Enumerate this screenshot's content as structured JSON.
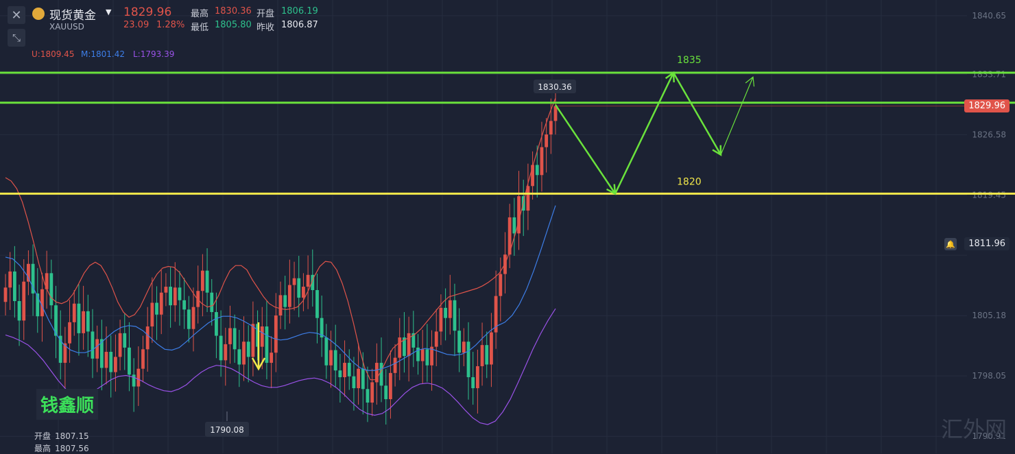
{
  "header": {
    "title": "现货黄金",
    "symbol": "XAUUSD",
    "price": "1829.96",
    "change": "23.09",
    "change_pct": "1.28%",
    "high_label": "最高",
    "high": "1830.36",
    "open_label": "开盘",
    "open": "1806.19",
    "low_label": "最低",
    "low": "1805.80",
    "prev_close_label": "昨收",
    "prev_close": "1806.87"
  },
  "indicator": {
    "upper": "U:1809.45",
    "middle": "M:1801.42",
    "lower": "L:1793.39"
  },
  "bottom_info": {
    "open_label": "开盘",
    "open": "1807.15",
    "high_label": "最高",
    "high": "1807.56"
  },
  "brand_text": "钱鑫顺",
  "watermark_text": "汇外网",
  "colors": {
    "up": "#e0544a",
    "down": "#2ec18d",
    "upper_band": "#e0544a",
    "middle_band": "#3d7ee8",
    "lower_band": "#9a52e8",
    "resistance": "#6ae23c",
    "support": "#f2e84a",
    "arrow": "#6ae23c",
    "down_arrow": "#f2e84a"
  },
  "icons": [
    "close-icon",
    "collapse-icon",
    "gold-coin-icon",
    "dropdown-caret-icon",
    "bell-icon"
  ],
  "chart_data": {
    "type": "candlestick",
    "y_ticks": [
      1840.65,
      1833.71,
      1826.58,
      1819.45,
      1812.32,
      1805.18,
      1798.05,
      1790.91
    ],
    "y_tick_labels": [
      "1840.65",
      "1833.71",
      "1826.58",
      "1819.45",
      "",
      "1805.18",
      "1798.05",
      "1790.91"
    ],
    "ylim": [
      1788.9,
      1842.5
    ],
    "current_price": "1829.96",
    "alert_price": "1811.96",
    "max_marker": "1830.36",
    "min_marker": "1790.08",
    "levels": [
      {
        "name": "resistance-1835",
        "value": 1833.9,
        "label": ""
      },
      {
        "name": "resistance-1830",
        "value": 1830.36,
        "label": ""
      },
      {
        "name": "support-1820",
        "value": 1819.6,
        "label": "1820"
      }
    ],
    "projection_labels": {
      "top": "1835",
      "bottom": "1820"
    },
    "projection_path": [
      {
        "t": 0,
        "p": 1830.1
      },
      {
        "t": 1,
        "p": 1819.6
      },
      {
        "t": 2,
        "p": 1833.9
      },
      {
        "t": 3,
        "p": 1824.2
      },
      {
        "t": 4,
        "p": 1833.4
      }
    ],
    "closes": [
      1808.5,
      1810.4,
      1806.9,
      1804.6,
      1809.2,
      1811.3,
      1807.8,
      1805.1,
      1808.3,
      1810.2,
      1806.4,
      1802.8,
      1799.6,
      1801.9,
      1804.4,
      1806.6,
      1803.1,
      1805.7,
      1803.3,
      1800.1,
      1802.4,
      1799.0,
      1800.9,
      1798.5,
      1800.3,
      1803.1,
      1801.4,
      1798.2,
      1796.8,
      1798.9,
      1801.2,
      1803.9,
      1806.7,
      1805.3,
      1807.9,
      1808.6,
      1806.4,
      1808.5,
      1807.0,
      1805.9,
      1803.6,
      1806.2,
      1808.1,
      1810.5,
      1807.9,
      1805.6,
      1802.8,
      1799.9,
      1801.8,
      1803.7,
      1801.2,
      1799.4,
      1802.1,
      1800.3,
      1804.2,
      1801.5,
      1803.9,
      1799.6,
      1800.8,
      1805.2,
      1807.6,
      1806.2,
      1808.8,
      1809.6,
      1807.3,
      1808.6,
      1810.0,
      1808.2,
      1804.9,
      1802.6,
      1799.3,
      1801.1,
      1798.7,
      1797.9,
      1799.6,
      1798.0,
      1796.6,
      1798.9,
      1796.5,
      1794.9,
      1797.3,
      1799.6,
      1796.9,
      1795.3,
      1798.4,
      1800.2,
      1802.6,
      1800.4,
      1803.1,
      1801.4,
      1799.8,
      1801.2,
      1799.3,
      1801.5,
      1803.3,
      1806.1,
      1804.9,
      1807.0,
      1803.4,
      1800.8,
      1802.1,
      1797.9,
      1796.6,
      1799.2,
      1801.7,
      1799.4,
      1803.2,
      1807.5,
      1810.1,
      1812.4,
      1816.8,
      1814.9,
      1819.3,
      1817.6,
      1820.5,
      1823.0,
      1821.8,
      1825.1,
      1826.6,
      1828.2,
      1829.96
    ],
    "opens": [
      1806.8,
      1808.5,
      1810.4,
      1806.9,
      1804.6,
      1809.2,
      1811.3,
      1807.8,
      1805.1,
      1808.3,
      1810.2,
      1806.4,
      1802.8,
      1799.6,
      1801.9,
      1804.4,
      1806.6,
      1803.1,
      1805.7,
      1803.3,
      1800.1,
      1802.4,
      1799.0,
      1800.9,
      1798.5,
      1800.3,
      1803.1,
      1801.4,
      1798.2,
      1796.8,
      1798.9,
      1801.2,
      1803.9,
      1806.7,
      1805.3,
      1807.9,
      1808.6,
      1806.4,
      1808.5,
      1807.0,
      1805.9,
      1803.6,
      1806.2,
      1808.1,
      1810.5,
      1807.9,
      1805.6,
      1802.8,
      1799.9,
      1801.8,
      1803.7,
      1801.2,
      1799.4,
      1802.1,
      1800.3,
      1804.2,
      1801.5,
      1803.9,
      1799.6,
      1800.8,
      1805.2,
      1807.6,
      1806.2,
      1808.8,
      1809.6,
      1807.3,
      1808.6,
      1810.0,
      1808.2,
      1804.9,
      1802.6,
      1799.3,
      1801.1,
      1798.7,
      1797.9,
      1799.6,
      1798.0,
      1796.6,
      1798.9,
      1796.5,
      1794.9,
      1797.3,
      1799.6,
      1796.9,
      1795.3,
      1798.4,
      1800.2,
      1802.6,
      1800.4,
      1803.1,
      1801.4,
      1799.8,
      1801.2,
      1799.3,
      1801.5,
      1803.3,
      1806.1,
      1804.9,
      1807.0,
      1803.4,
      1800.8,
      1802.1,
      1797.9,
      1796.6,
      1799.2,
      1801.7,
      1799.4,
      1803.2,
      1807.5,
      1810.1,
      1812.4,
      1816.8,
      1814.9,
      1819.3,
      1817.6,
      1820.5,
      1823.0,
      1821.8,
      1825.1,
      1826.6,
      1828.2
    ],
    "upper_band": [
      1821.5,
      1821.1,
      1820.2,
      1818.6,
      1816.4,
      1813.9,
      1811.2,
      1808.9,
      1807.4,
      1806.8,
      1806.6,
      1806.9,
      1807.7,
      1808.9,
      1810.2,
      1811.1,
      1811.5,
      1811.1,
      1810.0,
      1808.5,
      1806.8,
      1805.6,
      1805.0,
      1805.3,
      1806.2,
      1807.6,
      1809.0,
      1810.1,
      1810.8,
      1811.0,
      1810.9,
      1810.3,
      1809.3,
      1808.3,
      1807.3,
      1806.6,
      1806.2,
      1806.4,
      1807.6,
      1809.2,
      1810.5,
      1811.1,
      1811.1,
      1810.6,
      1809.4,
      1808.4,
      1807.4,
      1806.6,
      1806.2,
      1806.0,
      1805.9,
      1806.0,
      1806.2,
      1806.9,
      1808.2,
      1809.8,
      1811.0,
      1811.6,
      1811.5,
      1810.6,
      1809.0,
      1806.9,
      1804.3,
      1801.4,
      1799.0,
      1797.6,
      1797.6,
      1798.7,
      1800.1,
      1801.3,
      1801.9,
      1802.3,
      1802.6,
      1803.0,
      1803.6,
      1804.4,
      1805.2,
      1806.0,
      1806.8,
      1807.4,
      1807.6,
      1807.8,
      1808.0,
      1808.2,
      1808.4,
      1808.7,
      1809.1,
      1809.6,
      1810.2,
      1811.3,
      1813.0,
      1815.2,
      1817.8,
      1820.6,
      1823.0,
      1825.2,
      1827.3,
      1829.2,
      1830.9
    ],
    "middle_band": [
      1812.1,
      1811.9,
      1811.1,
      1809.9,
      1808.2,
      1806.4,
      1804.6,
      1803.0,
      1801.8,
      1801.1,
      1800.8,
      1800.8,
      1801.1,
      1801.8,
      1802.6,
      1803.3,
      1803.8,
      1804.0,
      1803.9,
      1803.4,
      1802.6,
      1801.8,
      1801.2,
      1801.1,
      1801.4,
      1802.1,
      1802.9,
      1803.6,
      1804.3,
      1804.8,
      1805.1,
      1805.1,
      1804.9,
      1804.5,
      1804.0,
      1803.4,
      1802.9,
      1802.5,
      1802.3,
      1802.4,
      1802.7,
      1803.0,
      1803.2,
      1803.1,
      1802.8,
      1802.2,
      1801.5,
      1800.6,
      1799.7,
      1799.0,
      1798.7,
      1798.7,
      1798.9,
      1799.2,
      1799.6,
      1800.1,
      1800.6,
      1801.1,
      1801.3,
      1801.2,
      1800.9,
      1800.6,
      1800.5,
      1800.6,
      1801.0,
      1801.7,
      1802.6,
      1803.4,
      1804.0,
      1804.4,
      1805.2,
      1806.5,
      1808.3,
      1810.5,
      1813.0,
      1815.6,
      1818.2
    ],
    "lower_band": [
      1802.9,
      1802.6,
      1802.2,
      1801.7,
      1800.9,
      1799.9,
      1798.7,
      1797.5,
      1796.5,
      1796.0,
      1795.8,
      1795.9,
      1796.4,
      1797.0,
      1797.6,
      1798.0,
      1798.1,
      1797.9,
      1797.5,
      1797.0,
      1796.6,
      1796.3,
      1796.2,
      1796.5,
      1797.0,
      1797.8,
      1798.5,
      1799.0,
      1799.3,
      1799.2,
      1798.9,
      1798.4,
      1797.8,
      1797.3,
      1796.9,
      1796.7,
      1796.7,
      1796.9,
      1797.2,
      1797.5,
      1797.7,
      1797.8,
      1797.6,
      1797.2,
      1796.6,
      1795.8,
      1794.9,
      1794.1,
      1793.6,
      1793.4,
      1793.6,
      1794.2,
      1795.1,
      1796.0,
      1796.7,
      1797.1,
      1797.2,
      1797.0,
      1796.6,
      1795.9,
      1795.0,
      1794.0,
      1793.1,
      1792.5,
      1792.3,
      1792.7,
      1793.8,
      1795.3,
      1797.2,
      1799.2,
      1801.2,
      1803.0,
      1804.6,
      1806.0
    ]
  }
}
